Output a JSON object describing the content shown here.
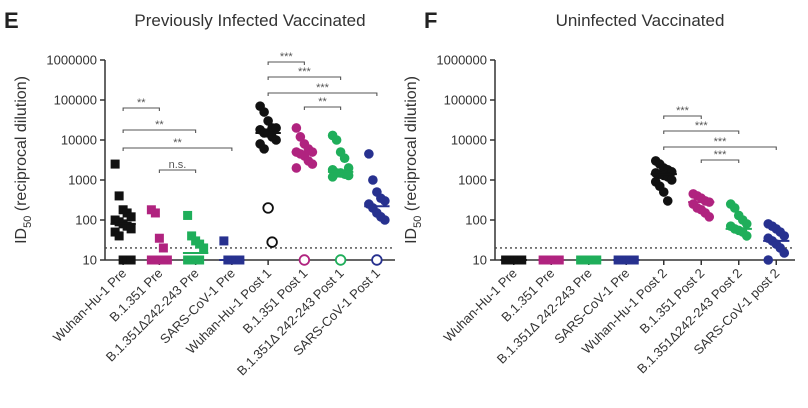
{
  "chart_data": [
    {
      "type": "dot",
      "panel": "E",
      "title": "Previously Infected Vaccinated",
      "ylabel": "ID",
      "ylabel_sub": "50",
      "ylabel_rest": " (reciprocal dilution)",
      "log_scale": true,
      "ylim": [
        10,
        1000000
      ],
      "yticks": [
        10,
        100,
        1000,
        10000,
        100000,
        1000000
      ],
      "threshold": 20,
      "categories": [
        "Wuhan-Hu-1 Pre",
        "B.1.351 Pre",
        "B.1.351Δ242-243 Pre",
        "SARS-CoV-1 Pre",
        "Wuhan-Hu-1 Post 1",
        "B.1.351  Post 1",
        "B.1.351Δ 242-243 Post 1",
        "SARS-CoV-1 Post 1"
      ],
      "colors": [
        "#111111",
        "#b0237f",
        "#1fae5a",
        "#27318f",
        "#111111",
        "#b0237f",
        "#1fae5a",
        "#27318f"
      ],
      "markers": [
        "square",
        "square",
        "square",
        "square",
        "circle",
        "circle",
        "circle",
        "circle"
      ],
      "values": [
        [
          2500,
          400,
          180,
          150,
          120,
          100,
          90,
          80,
          70,
          60,
          50,
          40,
          10,
          10,
          10
        ],
        [
          180,
          150,
          35,
          20,
          10,
          10,
          10,
          10,
          10
        ],
        [
          130,
          40,
          30,
          25,
          20,
          10,
          10,
          10,
          10
        ],
        [
          30,
          10,
          10,
          10,
          10
        ],
        [
          70000,
          50000,
          30000,
          20000,
          20000,
          18000,
          15000,
          15000,
          12000,
          10000,
          8000,
          6000
        ],
        [
          20000,
          12000,
          8000,
          6000,
          5000,
          5000,
          4500,
          4000,
          3000,
          2500,
          2000
        ],
        [
          13000,
          10000,
          5000,
          3500,
          2000,
          1800,
          1500,
          1500,
          1400,
          1300,
          1200
        ],
        [
          4500,
          1000,
          500,
          350,
          300,
          250,
          200,
          150,
          120,
          100
        ]
      ],
      "hollow_values": [
        [],
        [],
        [],
        [],
        [
          200,
          28
        ],
        [
          10
        ],
        [
          10
        ],
        [
          10
        ]
      ],
      "medians": [
        80,
        10,
        15,
        10,
        15000,
        5000,
        1600,
        220
      ],
      "comparisons": [
        {
          "from": 0,
          "to": 1,
          "label": "**"
        },
        {
          "from": 0,
          "to": 2,
          "label": "**"
        },
        {
          "from": 0,
          "to": 3,
          "label": "**"
        },
        {
          "from": 1,
          "to": 2,
          "label": "n.s."
        },
        {
          "from": 4,
          "to": 5,
          "label": "***"
        },
        {
          "from": 4,
          "to": 6,
          "label": "***"
        },
        {
          "from": 4,
          "to": 7,
          "label": "***"
        },
        {
          "from": 5,
          "to": 6,
          "label": "**"
        }
      ]
    },
    {
      "type": "dot",
      "panel": "F",
      "title": "Uninfected Vaccinated",
      "ylabel": "ID",
      "ylabel_sub": "50",
      "ylabel_rest": " (reciprocal dilution)",
      "log_scale": true,
      "ylim": [
        10,
        1000000
      ],
      "yticks": [
        10,
        100,
        1000,
        10000,
        100000,
        1000000
      ],
      "threshold": 20,
      "categories": [
        "Wuhan-Hu-1 Pre",
        "B.1.351 Pre",
        "B.1.351Δ 242-243 Pre",
        "SARS-CoV-1 Pre",
        "Wuhan-Hu-1 Post 2",
        "B.1.351  Post 2",
        "B.1.351Δ242-243 Post 2",
        "SARS-CoV-1 post 2"
      ],
      "colors": [
        "#111111",
        "#b0237f",
        "#1fae5a",
        "#27318f",
        "#111111",
        "#b0237f",
        "#1fae5a",
        "#27318f"
      ],
      "markers": [
        "square",
        "square",
        "square",
        "square",
        "circle",
        "circle",
        "circle",
        "circle"
      ],
      "values": [
        [
          10,
          10,
          10,
          10,
          10,
          10
        ],
        [
          10,
          10,
          10,
          10,
          10,
          10
        ],
        [
          10,
          10,
          10,
          10,
          10,
          10
        ],
        [
          10,
          10,
          10,
          10,
          10,
          10
        ],
        [
          3000,
          2500,
          2000,
          1800,
          1600,
          1500,
          1400,
          1300,
          1200,
          1000,
          900,
          700,
          500,
          300
        ],
        [
          450,
          400,
          350,
          300,
          280,
          250,
          200,
          180,
          150,
          120
        ],
        [
          250,
          200,
          130,
          100,
          80,
          70,
          60,
          55,
          50,
          40
        ],
        [
          80,
          70,
          60,
          50,
          40,
          35,
          30,
          25,
          20,
          15,
          10
        ]
      ],
      "hollow_values": [
        [],
        [],
        [],
        [],
        [],
        [],
        [],
        []
      ],
      "medians": [
        10,
        10,
        10,
        10,
        1400,
        280,
        60,
        30
      ],
      "comparisons": [
        {
          "from": 4,
          "to": 5,
          "label": "***"
        },
        {
          "from": 4,
          "to": 6,
          "label": "***"
        },
        {
          "from": 4,
          "to": 7,
          "label": "***"
        },
        {
          "from": 5,
          "to": 6,
          "label": "***"
        }
      ]
    }
  ]
}
